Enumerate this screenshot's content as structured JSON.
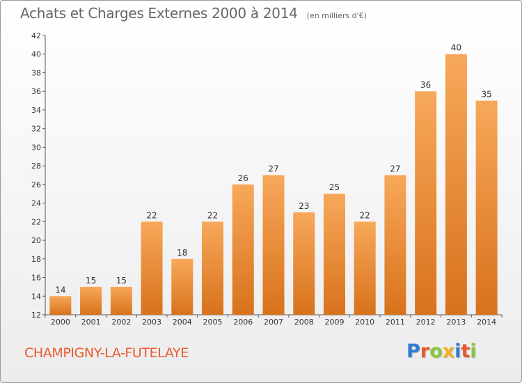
{
  "title": "Achats et Charges Externes 2000 à 2014",
  "unit_note": "(en milliers d'€)",
  "commune": "CHAMPIGNY-LA-FUTELAYE",
  "logo": {
    "text": "Proxiti",
    "letter_colors": [
      "#2e7bd6",
      "#e8592a",
      "#8bc53f",
      "#f0b020",
      "#2e7bd6",
      "#e8592a",
      "#8bc53f"
    ]
  },
  "colors": {
    "bar_light": "#f7a85a",
    "bar_dark": "#d8721c",
    "title": "#666666",
    "commune": "#e8592a"
  },
  "chart_data": {
    "type": "bar",
    "categories": [
      "2000",
      "2001",
      "2002",
      "2003",
      "2004",
      "2005",
      "2006",
      "2007",
      "2008",
      "2009",
      "2010",
      "2011",
      "2012",
      "2013",
      "2014"
    ],
    "values": [
      14,
      15,
      15,
      22,
      18,
      22,
      26,
      27,
      23,
      25,
      22,
      27,
      36,
      40,
      35
    ],
    "ylim": [
      12,
      42
    ],
    "yticks": [
      12,
      14,
      16,
      18,
      20,
      22,
      24,
      26,
      28,
      30,
      32,
      34,
      36,
      38,
      40,
      42
    ],
    "grid": false,
    "legend": "none",
    "data_labels": true
  }
}
